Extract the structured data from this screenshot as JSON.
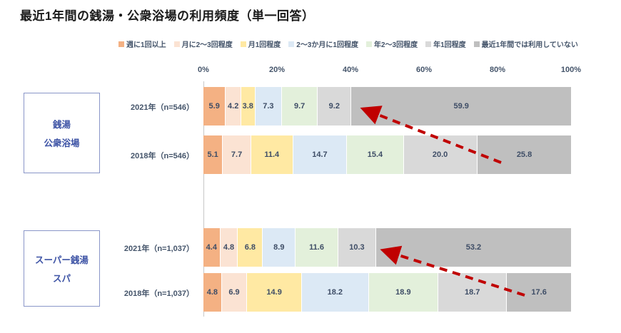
{
  "title": "最近1年間の銭湯・公衆浴場の利用頻度（単一回答）",
  "legend": {
    "items": [
      {
        "label": "週に1回以上",
        "color": "#F4B183"
      },
      {
        "label": "月に2～3回程度",
        "color": "#FBE3D3"
      },
      {
        "label": "月1回程度",
        "color": "#FFE9A3"
      },
      {
        "label": "2～3か月に1回程度",
        "color": "#DCE9F5"
      },
      {
        "label": "年2～3回程度",
        "color": "#E3F0DB"
      },
      {
        "label": "年1回程度",
        "color": "#D9D9D9"
      },
      {
        "label": "最近1年間では利用していない",
        "color": "#BFBFBF"
      }
    ]
  },
  "axis": {
    "ticks": [
      "0%",
      "20%",
      "40%",
      "60%",
      "80%",
      "100%"
    ],
    "xlim": [
      0,
      100
    ]
  },
  "chart_data": [
    {
      "type": "bar",
      "stacked": true,
      "orientation": "horizontal",
      "group_label": "銭湯・公衆浴場",
      "group_lines": [
        "銭湯",
        "公衆浴場"
      ],
      "categories": [
        "2021年（n=546）",
        "2018年（n=546）"
      ],
      "series": [
        {
          "name": "週に1回以上",
          "values": [
            5.9,
            5.1
          ]
        },
        {
          "name": "月に2～3回程度",
          "values": [
            4.2,
            7.7
          ]
        },
        {
          "name": "月1回程度",
          "values": [
            3.8,
            11.4
          ]
        },
        {
          "name": "2～3か月に1回程度",
          "values": [
            7.3,
            14.7
          ]
        },
        {
          "name": "年2～3回程度",
          "values": [
            9.7,
            15.4
          ]
        },
        {
          "name": "年1回程度",
          "values": [
            9.2,
            20.0
          ]
        },
        {
          "name": "最近1年間では利用していない",
          "values": [
            59.9,
            25.8
          ]
        }
      ],
      "xlim": [
        0,
        100
      ]
    },
    {
      "type": "bar",
      "stacked": true,
      "orientation": "horizontal",
      "group_label": "スーパー銭湯・スパ",
      "group_lines": [
        "スーパー銭湯",
        "スパ"
      ],
      "categories": [
        "2021年（n=1,037）",
        "2018年（n=1,037）"
      ],
      "series": [
        {
          "name": "週に1回以上",
          "values": [
            4.4,
            4.8
          ]
        },
        {
          "name": "月に2～3回程度",
          "values": [
            4.8,
            6.9
          ]
        },
        {
          "name": "月1回程度",
          "values": [
            6.8,
            14.9
          ]
        },
        {
          "name": "2～3か月に1回程度",
          "values": [
            8.9,
            18.2
          ]
        },
        {
          "name": "年2～3回程度",
          "values": [
            11.6,
            18.9
          ]
        },
        {
          "name": "年1回程度",
          "values": [
            10.3,
            18.7
          ]
        },
        {
          "name": "最近1年間では利用していない",
          "values": [
            53.2,
            17.6
          ]
        }
      ],
      "xlim": [
        0,
        100
      ]
    }
  ],
  "annotations": {
    "arrows": [
      {
        "from": [
          702,
          228
        ],
        "to": [
          512,
          154
        ],
        "color": "#C00000"
      },
      {
        "from": [
          735,
          414
        ],
        "to": [
          540,
          352
        ],
        "color": "#C00000"
      }
    ]
  },
  "colors": {
    "value_text": "#3E4D66",
    "label_text": "#44546A",
    "axis_line": "#C8C8C8",
    "box_border": "#8A96C8",
    "box_text": "#3D53A5",
    "arrow": "#C00000"
  }
}
